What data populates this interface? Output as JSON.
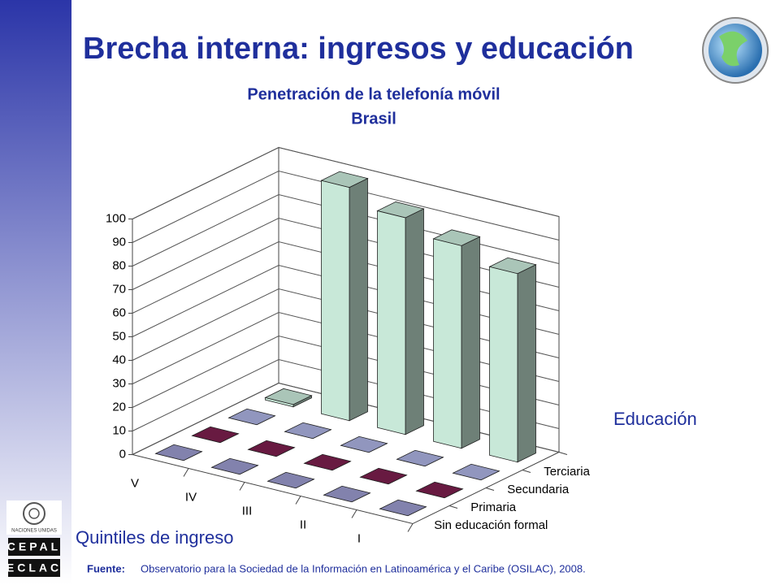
{
  "slide": {
    "title": "Brecha interna: ingresos y educación",
    "source_label": "Fuente:",
    "source": "Observatorio para la Sociedad de la Información en Latinoamérica y el Caribe (OSILAC), 2008.",
    "logo_un": "NACIONES UNIDAS",
    "logo_top": "CEPAL",
    "logo_bottom": "ECLAC"
  },
  "chart_data": {
    "type": "bar3d",
    "title": "Penetración de la telefonía móvil",
    "subtitle": "Brasil",
    "x_label": "Quintiles de ingreso",
    "legend_title": "Educación",
    "categories": [
      "V",
      "IV",
      "III",
      "II",
      "I"
    ],
    "series": [
      {
        "name": "Sin educación formal",
        "color": "#9999cc",
        "values": [
          0,
          0,
          0,
          0,
          0
        ]
      },
      {
        "name": "Primaria",
        "color": "#7a1f4d",
        "values": [
          0,
          0,
          0,
          0,
          0
        ]
      },
      {
        "name": "Secundaria",
        "color": "#aab0e0",
        "values": [
          0,
          0,
          0,
          0,
          0
        ]
      },
      {
        "name": "Terciaria",
        "color": "#c8e8d8",
        "values": [
          1,
          99,
          92,
          86,
          80
        ]
      }
    ],
    "ylim": [
      0,
      100
    ],
    "yticks": [
      0,
      10,
      20,
      30,
      40,
      50,
      60,
      70,
      80,
      90,
      100
    ],
    "grid": true
  }
}
